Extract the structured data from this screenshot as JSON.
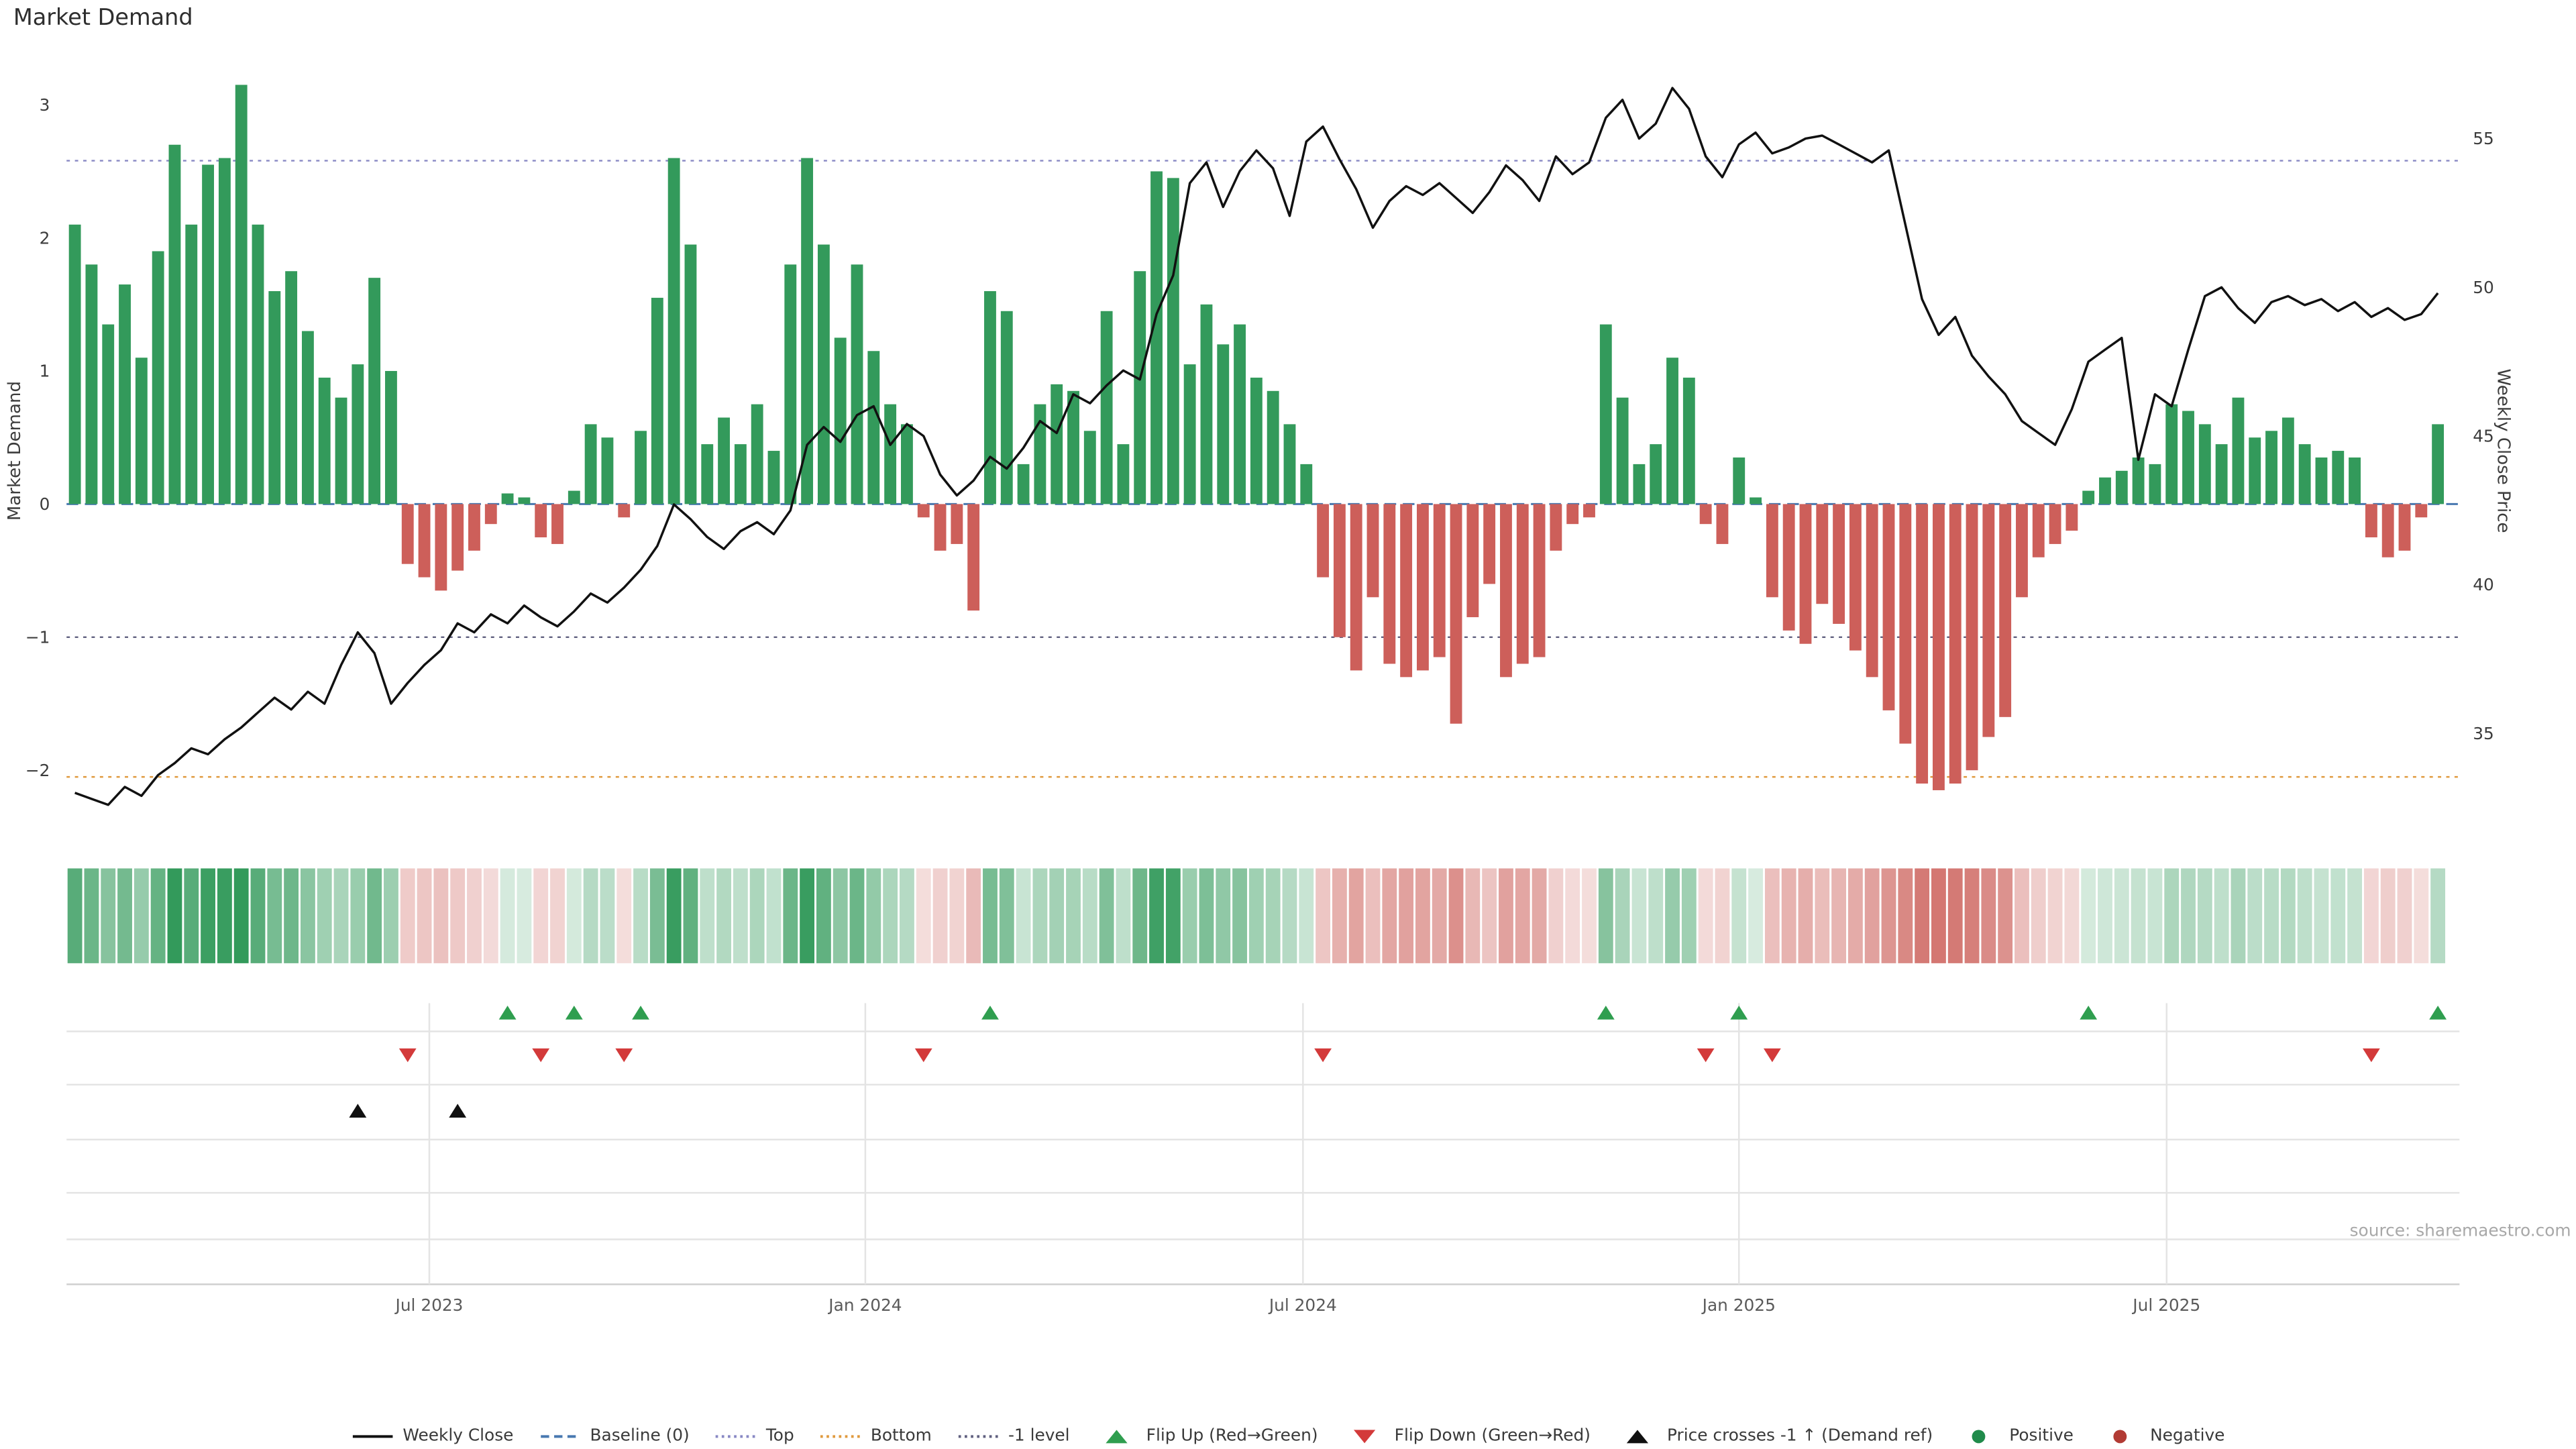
{
  "title": "Market Demand",
  "source_note": "source: sharemaestro.com",
  "axes": {
    "left_label": "Market Demand",
    "right_label": "Weekly Close Price"
  },
  "legend": [
    {
      "label": "Weekly Close",
      "symbol": "line",
      "color": "#111111"
    },
    {
      "label": "Baseline (0)",
      "symbol": "dashed",
      "color": "#4878b0"
    },
    {
      "label": "Top",
      "symbol": "dotted",
      "color": "#8888c4"
    },
    {
      "label": "Bottom",
      "symbol": "dotted",
      "color": "#e09a3e"
    },
    {
      "label": "-1 level",
      "symbol": "dotted",
      "color": "#60607f"
    },
    {
      "label": "Flip Up (Red→Green)",
      "symbol": "triangle-up",
      "color": "#2f9e4f"
    },
    {
      "label": "Flip Down (Green→Red)",
      "symbol": "triangle-down",
      "color": "#d33a3a"
    },
    {
      "label": "Price crosses -1 ↑ (Demand ref)",
      "symbol": "triangle-up",
      "color": "#111111"
    },
    {
      "label": "Positive",
      "symbol": "dot",
      "color": "#208b4b"
    },
    {
      "label": "Negative",
      "symbol": "dot",
      "color": "#b23b34"
    }
  ],
  "chart_data": {
    "type": "combo",
    "x_unit": "week-index",
    "n_weeks": 143,
    "x_ticks": [
      {
        "label": "Jul 2023",
        "week": 21.3
      },
      {
        "label": "Jan 2024",
        "week": 47.5
      },
      {
        "label": "Jul 2024",
        "week": 73.8
      },
      {
        "label": "Jan 2025",
        "week": 100.0
      },
      {
        "label": "Jul 2025",
        "week": 125.7
      }
    ],
    "left_axis": {
      "label": "Market Demand",
      "ticks": [
        3,
        2,
        1,
        0,
        -1,
        -2
      ],
      "ylim": [
        -2.55,
        3.35
      ]
    },
    "right_axis": {
      "label": "Weekly Close Price",
      "ticks": [
        55,
        50,
        45,
        40,
        35
      ],
      "ylim": [
        31.3,
        57.7
      ]
    },
    "reference_lines": {
      "baseline": 0,
      "top": 2.58,
      "bottom": -2.05,
      "minus_one_level": -1
    },
    "series": [
      {
        "name": "Market Demand",
        "type": "bar",
        "axis": "left",
        "values": [
          2.1,
          1.8,
          1.35,
          1.65,
          1.1,
          1.9,
          2.7,
          2.1,
          2.55,
          2.6,
          3.15,
          2.1,
          1.6,
          1.75,
          1.3,
          0.95,
          0.8,
          1.05,
          1.7,
          1.0,
          -0.45,
          -0.55,
          -0.65,
          -0.5,
          -0.35,
          -0.15,
          0.08,
          0.05,
          -0.25,
          -0.3,
          0.1,
          0.6,
          0.5,
          -0.1,
          0.55,
          1.55,
          2.6,
          1.95,
          0.45,
          0.65,
          0.45,
          0.75,
          0.4,
          1.8,
          2.6,
          1.95,
          1.25,
          1.8,
          1.15,
          0.75,
          0.6,
          -0.1,
          -0.35,
          -0.3,
          -0.8,
          1.6,
          1.45,
          0.3,
          0.75,
          0.9,
          0.85,
          0.55,
          1.45,
          0.45,
          1.75,
          2.5,
          2.45,
          1.05,
          1.5,
          1.2,
          1.35,
          0.95,
          0.85,
          0.6,
          0.3,
          -0.55,
          -1.0,
          -1.25,
          -0.7,
          -1.2,
          -1.3,
          -1.25,
          -1.15,
          -1.65,
          -0.85,
          -0.6,
          -1.3,
          -1.2,
          -1.15,
          -0.35,
          -0.15,
          -0.1,
          1.35,
          0.8,
          0.3,
          0.45,
          1.1,
          0.95,
          -0.15,
          -0.3,
          0.35,
          0.05,
          -0.7,
          -0.95,
          -1.05,
          -0.75,
          -0.9,
          -1.1,
          -1.3,
          -1.55,
          -1.8,
          -2.1,
          -2.15,
          -2.1,
          -2.0,
          -1.75,
          -1.6,
          -0.7,
          -0.4,
          -0.3,
          -0.2,
          0.1,
          0.2,
          0.25,
          0.35,
          0.3,
          0.75,
          0.7,
          0.6,
          0.45,
          0.8,
          0.5,
          0.55,
          0.65,
          0.45,
          0.35,
          0.4,
          0.35,
          -0.25,
          -0.4,
          -0.35,
          -0.1,
          0.6
        ]
      },
      {
        "name": "Weekly Close",
        "type": "line",
        "axis": "right",
        "values": [
          33.0,
          32.8,
          32.6,
          33.2,
          32.9,
          33.6,
          34.0,
          34.5,
          34.3,
          34.8,
          35.2,
          35.7,
          36.2,
          35.8,
          36.4,
          36.0,
          37.3,
          38.4,
          37.7,
          36.0,
          36.7,
          37.3,
          37.8,
          38.7,
          38.4,
          39.0,
          38.7,
          39.3,
          38.9,
          38.6,
          39.1,
          39.7,
          39.4,
          39.9,
          40.5,
          41.3,
          42.7,
          42.2,
          41.6,
          41.2,
          41.8,
          42.1,
          41.7,
          42.5,
          44.7,
          45.3,
          44.8,
          45.7,
          46.0,
          44.7,
          45.4,
          45.0,
          43.7,
          43.0,
          43.5,
          44.3,
          43.9,
          44.6,
          45.5,
          45.1,
          46.4,
          46.1,
          46.7,
          47.2,
          46.9,
          49.1,
          50.4,
          53.5,
          54.2,
          52.7,
          53.9,
          54.6,
          54.0,
          52.4,
          54.9,
          55.4,
          54.3,
          53.3,
          52.0,
          52.9,
          53.4,
          53.1,
          53.5,
          53.0,
          52.5,
          53.2,
          54.1,
          53.6,
          52.9,
          54.4,
          53.8,
          54.2,
          55.7,
          56.3,
          55.0,
          55.5,
          56.7,
          56.0,
          54.4,
          53.7,
          54.8,
          55.2,
          54.5,
          54.7,
          55.0,
          55.1,
          54.8,
          54.5,
          54.2,
          54.6,
          52.1,
          49.6,
          48.4,
          49.0,
          47.7,
          47.0,
          46.4,
          45.5,
          45.1,
          44.7,
          45.9,
          47.5,
          47.9,
          48.3,
          44.2,
          46.4,
          46.0,
          47.9,
          49.7,
          50.0,
          49.3,
          48.8,
          49.5,
          49.7,
          49.4,
          49.6,
          49.2,
          49.5,
          49.0,
          49.3,
          48.9,
          49.1,
          49.8
        ]
      }
    ],
    "markers": {
      "flip_up_weeks": [
        26,
        30,
        34,
        55,
        92,
        100,
        121,
        142
      ],
      "flip_down_weeks": [
        20,
        28,
        33,
        51,
        75,
        98,
        102,
        138
      ],
      "price_cross_minus1_weeks": [
        17,
        23
      ]
    },
    "colors": {
      "positive": "#339a5b",
      "negative": "#cd5f5a",
      "line": "#111111",
      "baseline": "#4878b0",
      "top": "#8888c4",
      "bottom": "#e09a3e",
      "minus_one": "#60607f",
      "flip_up": "#2f9e4f",
      "flip_down": "#d33a3a"
    }
  }
}
